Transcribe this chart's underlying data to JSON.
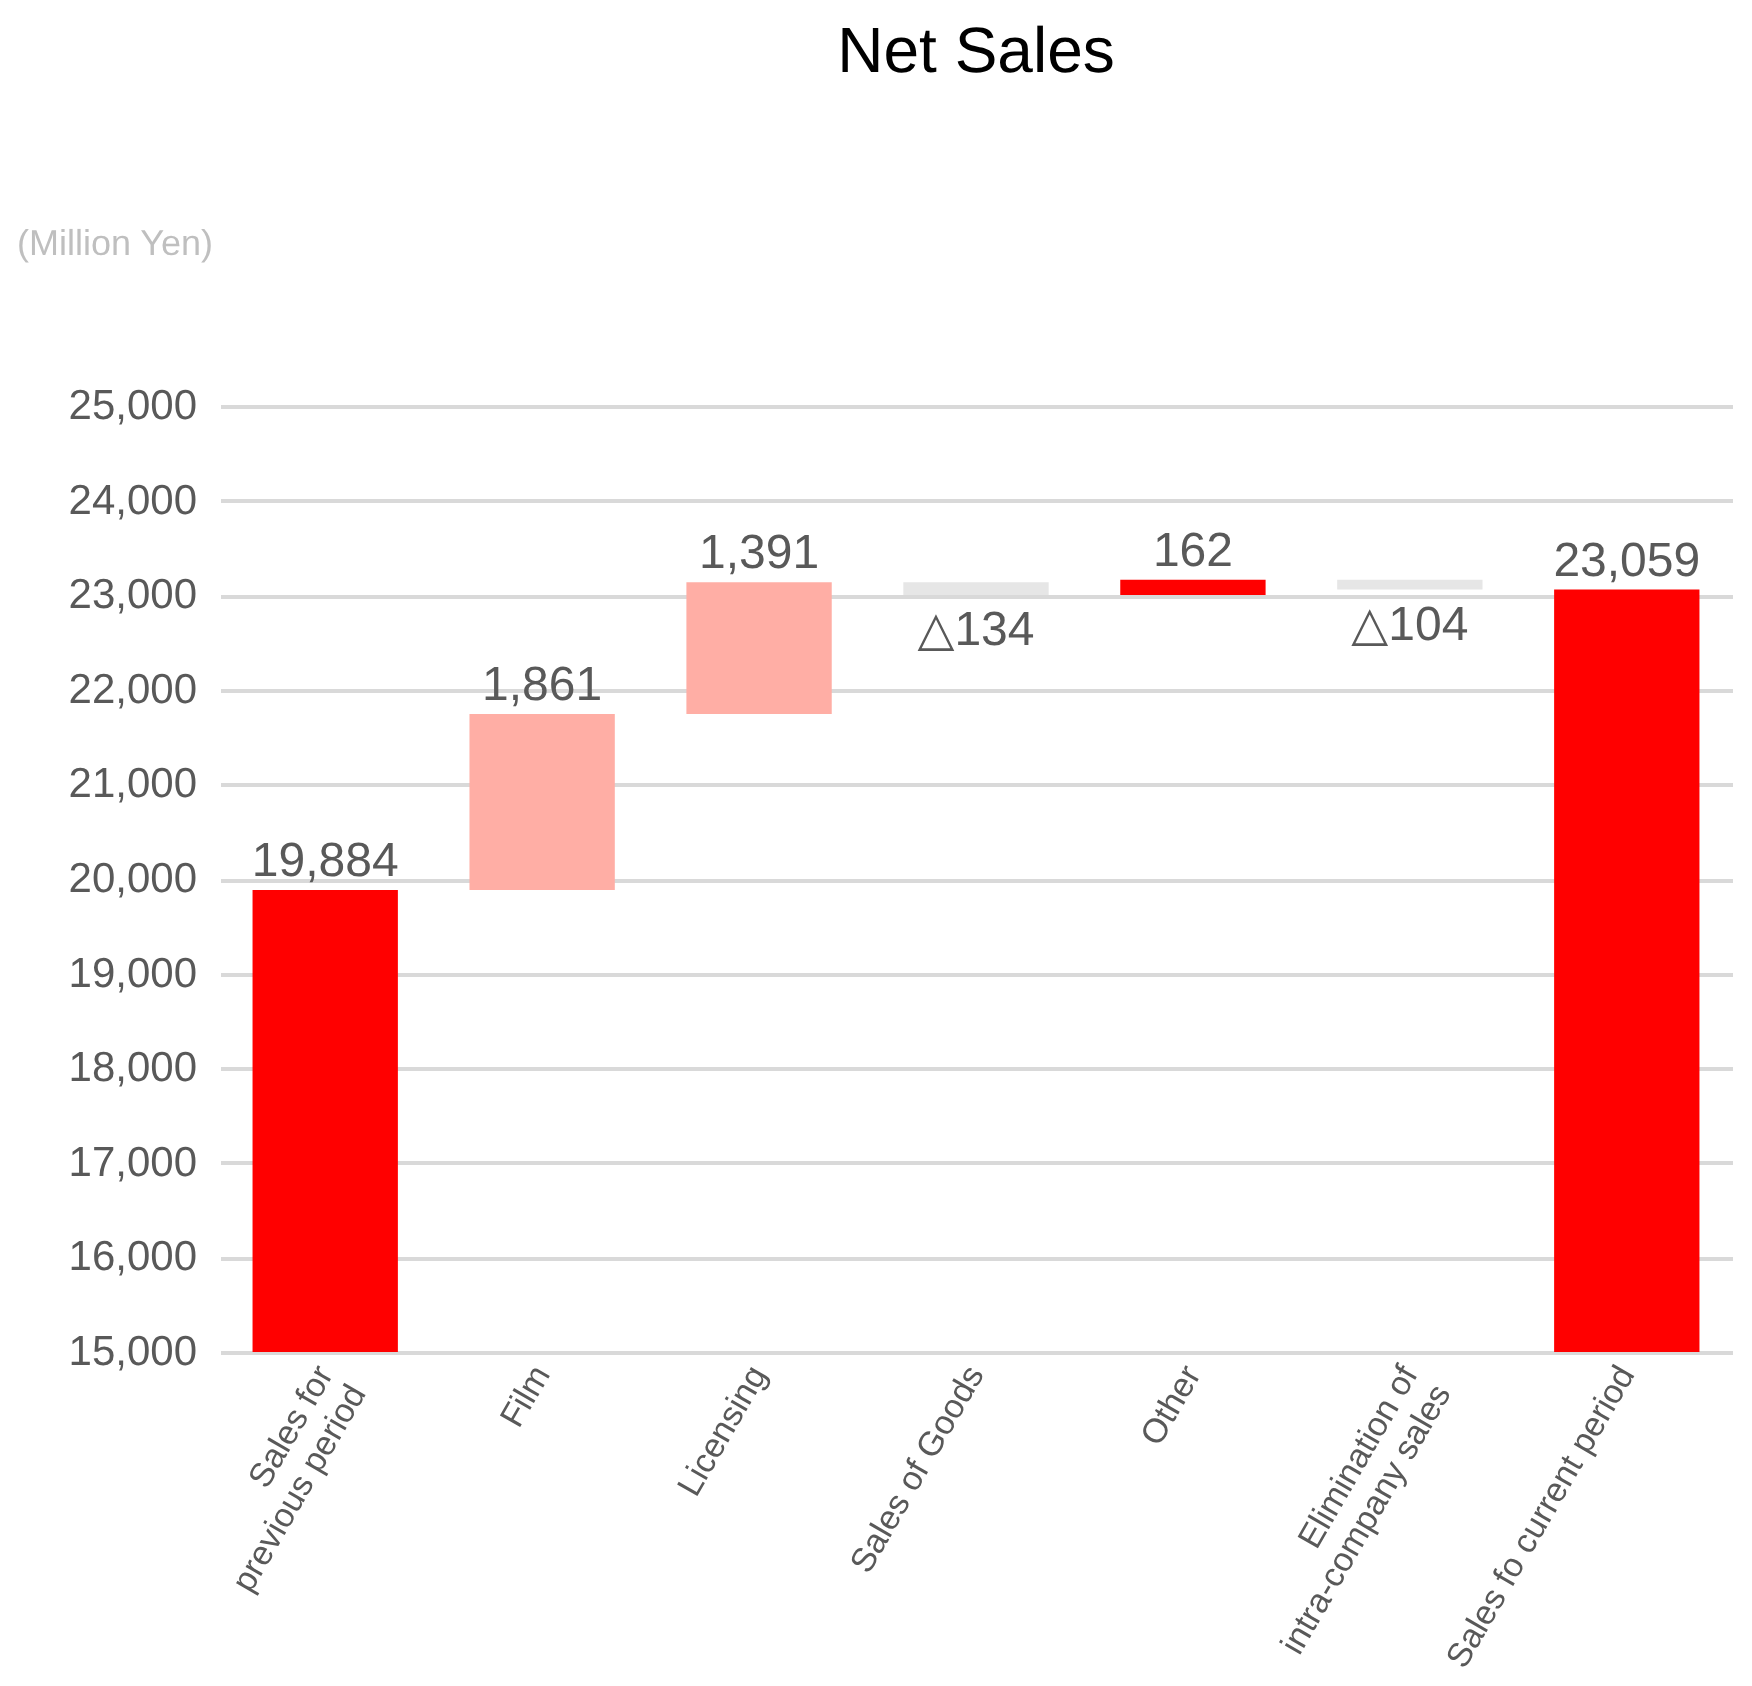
{
  "chart_data": {
    "type": "bar",
    "title": "Net Sales",
    "ylabel": "(Million Yen)",
    "categories": [
      "Sales for\nprevious period",
      "Film",
      "Licensing",
      "Sales of Goods",
      "Other",
      "Elimination of\nintra-company sales",
      "Sales fo current period"
    ],
    "base": [
      15000,
      19884,
      21745,
      23136,
      23002,
      23164,
      15000
    ],
    "values": [
      4884,
      1861,
      1391,
      -134,
      162,
      -104,
      8059
    ],
    "colors": [
      "#ff0000",
      "#ffaea5",
      "#ffaea5",
      "#e6e6e6",
      "#ff0000",
      "#e6e6e6",
      "#ff0000"
    ],
    "value_labels": [
      "19,884",
      "1,861",
      "1,391",
      "△134",
      "162",
      "△104",
      "23,059"
    ],
    "ylim": [
      15000,
      25000
    ],
    "yticks": [
      {
        "value": 15000,
        "label": "15,000"
      },
      {
        "value": 16000,
        "label": "16,000"
      },
      {
        "value": 17000,
        "label": "17,000"
      },
      {
        "value": 18000,
        "label": "18,000"
      },
      {
        "value": 19000,
        "label": "19,000"
      },
      {
        "value": 20000,
        "label": "20,000"
      },
      {
        "value": 21000,
        "label": "21,000"
      },
      {
        "value": 22000,
        "label": "22,000"
      },
      {
        "value": 23000,
        "label": "23,000"
      },
      {
        "value": 24000,
        "label": "24,000"
      },
      {
        "value": 25000,
        "label": "25,000"
      }
    ],
    "grid": "y"
  }
}
